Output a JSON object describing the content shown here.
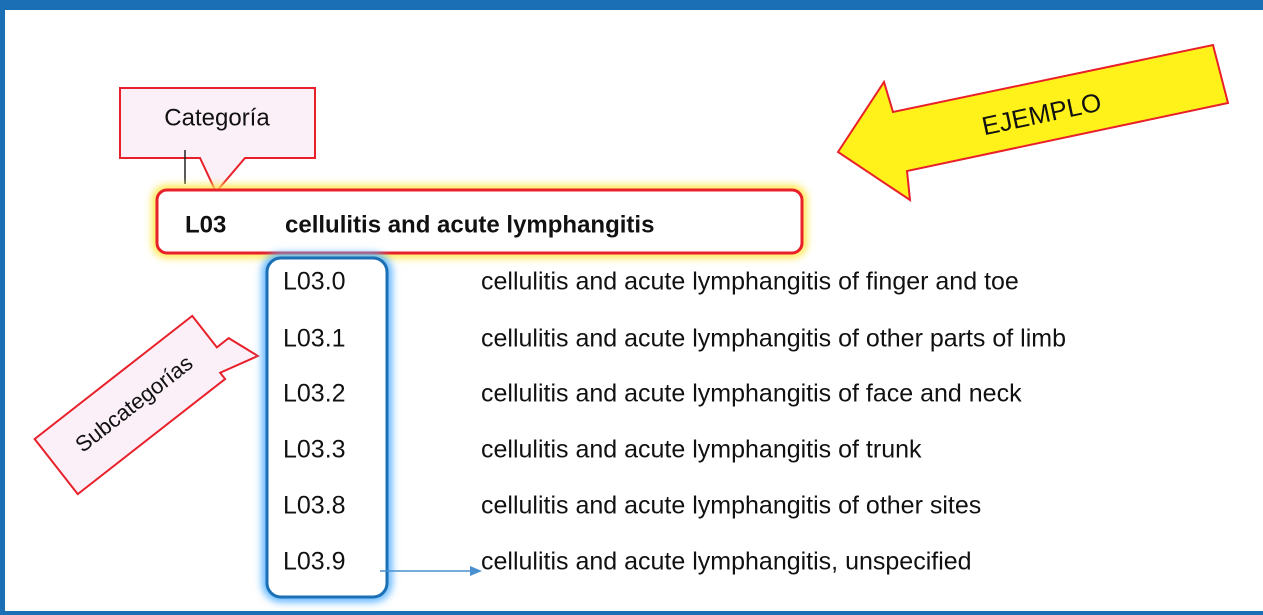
{
  "callouts": {
    "category": "Categoría",
    "example": "EJEMPLO",
    "subcategories": "Subcategorías"
  },
  "category": {
    "code": "L03",
    "title": "cellulitis and acute lymphangitis"
  },
  "subcategories": [
    {
      "code": "L03.0",
      "description": "cellulitis and acute lymphangitis of finger and toe"
    },
    {
      "code": "L03.1",
      "description": "cellulitis and acute lymphangitis of other parts of limb"
    },
    {
      "code": "L03.2",
      "description": "cellulitis and acute lymphangitis of face and neck"
    },
    {
      "code": "L03.3",
      "description": "cellulitis and acute lymphangitis of trunk"
    },
    {
      "code": "L03.8",
      "description": "cellulitis and acute lymphangitis of other sites"
    },
    {
      "code": "L03.9",
      "description": "cellulitis and acute lymphangitis, unspecified"
    }
  ]
}
